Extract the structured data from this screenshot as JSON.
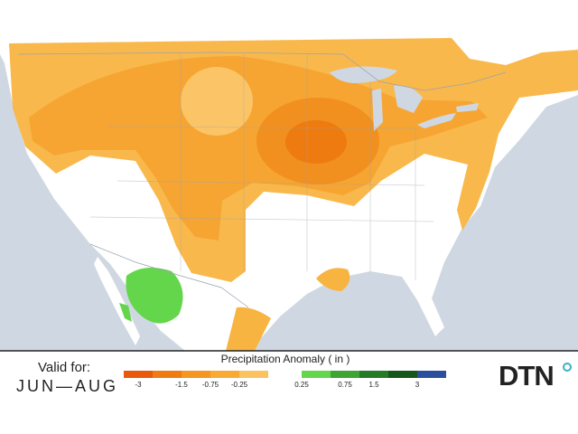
{
  "valid": {
    "label": "Valid for:",
    "period": "JUN—AUG"
  },
  "legend": {
    "title": "Precipitation Anomaly ( in )",
    "negative": {
      "colors": [
        "#e8590c",
        "#ef7b12",
        "#f4961f",
        "#f7ab36",
        "#fac35f"
      ],
      "ticks": [
        "-3",
        "-1.5",
        "-0.75",
        "-0.25"
      ]
    },
    "positive": {
      "colors": [
        "#63d64b",
        "#3ea534",
        "#257a26",
        "#16551c",
        "#2b4f9e"
      ],
      "ticks": [
        "0.25",
        "0.75",
        "1.5",
        "3"
      ]
    }
  },
  "logo": "DTN"
}
